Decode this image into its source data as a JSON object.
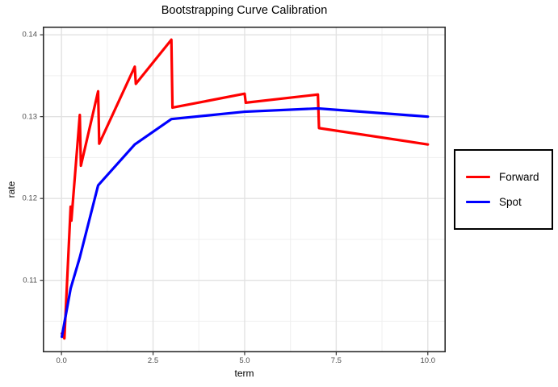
{
  "chart_data": {
    "type": "line",
    "title": "Bootstrapping Curve Calibration",
    "xlabel": "term",
    "ylabel": "rate",
    "xlim": [
      -0.51,
      10.49
    ],
    "ylim": [
      0.1012,
      0.141
    ],
    "x_ticks": [
      {
        "v": 0,
        "label": "0.0"
      },
      {
        "v": 2.5,
        "label": "2.5"
      },
      {
        "v": 5,
        "label": "5.0"
      },
      {
        "v": 7.5,
        "label": "7.5"
      },
      {
        "v": 10,
        "label": "10.0"
      }
    ],
    "y_ticks": [
      {
        "v": 0.11,
        "label": "0.11"
      },
      {
        "v": 0.12,
        "label": "0.12"
      },
      {
        "v": 0.13,
        "label": "0.13"
      },
      {
        "v": 0.14,
        "label": "0.14"
      }
    ],
    "x_minor": [
      1.25,
      3.75,
      6.25,
      8.75
    ],
    "y_minor": [
      0.105,
      0.115,
      0.125,
      0.135
    ],
    "grid": true,
    "legend_position": "right",
    "series": [
      {
        "name": "Forward",
        "color": "#FF0000",
        "points": [
          [
            0.01,
            0.1035
          ],
          [
            0.08,
            0.1029
          ],
          [
            0.25,
            0.119
          ],
          [
            0.27,
            0.1173
          ],
          [
            0.5,
            0.1302
          ],
          [
            0.53,
            0.124
          ],
          [
            1.0,
            0.1331
          ],
          [
            1.03,
            0.1267
          ],
          [
            2.0,
            0.1361
          ],
          [
            2.03,
            0.134
          ],
          [
            3.0,
            0.1394
          ],
          [
            3.03,
            0.1311
          ],
          [
            5.0,
            0.1328
          ],
          [
            5.03,
            0.1317
          ],
          [
            7.0,
            0.1327
          ],
          [
            7.03,
            0.1286
          ],
          [
            10.0,
            0.1266
          ]
        ]
      },
      {
        "name": "Spot",
        "color": "#0000FF",
        "points": [
          [
            0.01,
            0.1031
          ],
          [
            0.25,
            0.109
          ],
          [
            0.5,
            0.1128
          ],
          [
            1.0,
            0.1216
          ],
          [
            2.0,
            0.1266
          ],
          [
            3.0,
            0.1297
          ],
          [
            5.0,
            0.1306
          ],
          [
            7.0,
            0.131
          ],
          [
            10.0,
            0.13
          ]
        ]
      }
    ]
  }
}
